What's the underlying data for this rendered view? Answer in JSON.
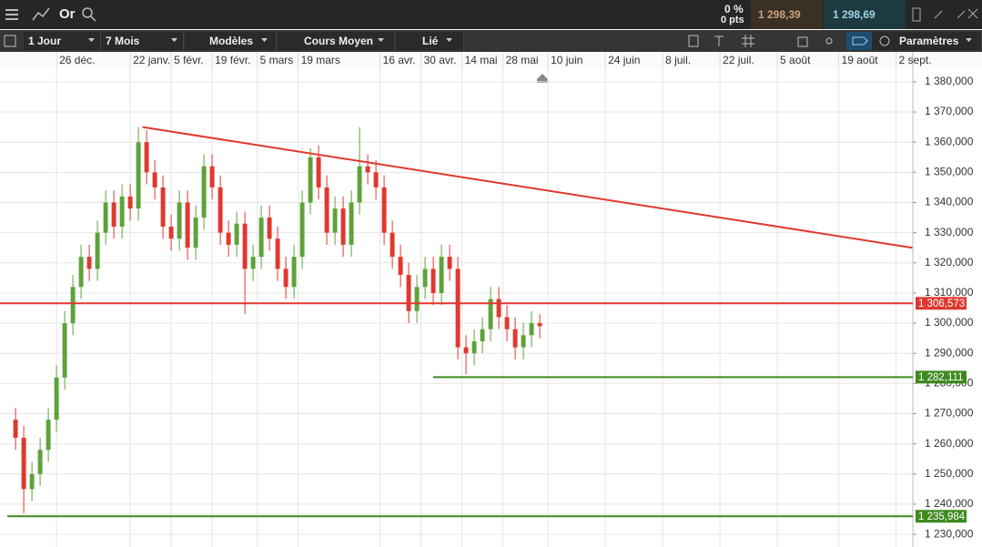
{
  "header": {
    "instrument": "Or",
    "change_pct": "0 %",
    "change_pts": "0 pts",
    "sell": "1 298,39",
    "buy": "1 298,69"
  },
  "toolbar": {
    "interval": "1 Jour",
    "range": "7 Mois",
    "patterns": "Modèles",
    "price_type": "Cours Moyen",
    "link": "Lié",
    "settings": "Paramètres"
  },
  "chart_data": {
    "type": "candlestick",
    "x": [
      0,
      2,
      4,
      6,
      8,
      10,
      12,
      14,
      16,
      18,
      20,
      22,
      24,
      26,
      28,
      30,
      32,
      34,
      36,
      38,
      40,
      42,
      44,
      46,
      48,
      50,
      52,
      54,
      56,
      58,
      60,
      62,
      64,
      66,
      68,
      70,
      72,
      74,
      76,
      78,
      80,
      82,
      84,
      86,
      88,
      90,
      92,
      94,
      96,
      98,
      100,
      102,
      104,
      106,
      108,
      110,
      112,
      114,
      116,
      118,
      120,
      122,
      124,
      126,
      128
    ],
    "open": [
      1268,
      1262,
      1245,
      1250,
      1258,
      1268,
      1282,
      1300,
      1312,
      1322,
      1318,
      1330,
      1340,
      1332,
      1342,
      1338,
      1360,
      1350,
      1345,
      1332,
      1328,
      1340,
      1325,
      1335,
      1352,
      1345,
      1330,
      1326,
      1333,
      1318,
      1322,
      1335,
      1328,
      1318,
      1312,
      1322,
      1340,
      1355,
      1345,
      1330,
      1338,
      1326,
      1340,
      1352,
      1350,
      1345,
      1330,
      1322,
      1316,
      1304,
      1312,
      1318,
      1310,
      1322,
      1318,
      1292,
      1290,
      1294,
      1298,
      1308,
      1302,
      1298,
      1292,
      1296,
      1300
    ],
    "high": [
      1272,
      1266,
      1254,
      1262,
      1272,
      1286,
      1304,
      1316,
      1326,
      1326,
      1334,
      1344,
      1344,
      1346,
      1346,
      1365,
      1364,
      1354,
      1349,
      1336,
      1344,
      1344,
      1339,
      1356,
      1356,
      1349,
      1334,
      1337,
      1337,
      1326,
      1339,
      1339,
      1332,
      1322,
      1326,
      1344,
      1358,
      1359,
      1349,
      1342,
      1342,
      1344,
      1365,
      1356,
      1354,
      1349,
      1334,
      1326,
      1320,
      1316,
      1322,
      1322,
      1326,
      1326,
      1322,
      1296,
      1298,
      1302,
      1312,
      1312,
      1306,
      1302,
      1300,
      1304,
      1303
    ],
    "low": [
      1258,
      1237,
      1241,
      1246,
      1254,
      1264,
      1278,
      1296,
      1308,
      1314,
      1314,
      1326,
      1328,
      1328,
      1334,
      1334,
      1346,
      1341,
      1328,
      1324,
      1324,
      1321,
      1321,
      1331,
      1341,
      1326,
      1322,
      1322,
      1303,
      1314,
      1318,
      1324,
      1314,
      1308,
      1308,
      1318,
      1336,
      1341,
      1326,
      1326,
      1322,
      1322,
      1336,
      1346,
      1341,
      1326,
      1318,
      1312,
      1300,
      1300,
      1308,
      1306,
      1306,
      1314,
      1288,
      1283,
      1286,
      1290,
      1294,
      1298,
      1294,
      1288,
      1288,
      1292,
      1295
    ],
    "close": [
      1262,
      1245,
      1250,
      1258,
      1268,
      1282,
      1300,
      1312,
      1322,
      1318,
      1330,
      1340,
      1332,
      1342,
      1338,
      1360,
      1350,
      1345,
      1332,
      1328,
      1340,
      1325,
      1335,
      1352,
      1345,
      1330,
      1326,
      1333,
      1318,
      1322,
      1335,
      1328,
      1318,
      1312,
      1322,
      1340,
      1355,
      1345,
      1330,
      1338,
      1326,
      1340,
      1352,
      1350,
      1345,
      1330,
      1322,
      1316,
      1304,
      1312,
      1318,
      1310,
      1322,
      1318,
      1292,
      1290,
      1294,
      1298,
      1308,
      1302,
      1298,
      1292,
      1296,
      1300,
      1299
    ],
    "up_color": "#5ea23a",
    "down_color": "#e0382f",
    "xlim": [
      -3.8,
      219.1
    ],
    "xticks": [
      {
        "value": 10,
        "label": "26 déc."
      },
      {
        "value": 28,
        "label": "22 janv."
      },
      {
        "value": 38,
        "label": "5 févr."
      },
      {
        "value": 48,
        "label": "19 févr."
      },
      {
        "value": 59,
        "label": "5 mars"
      },
      {
        "value": 69,
        "label": "19 mars"
      },
      {
        "value": 89,
        "label": "16 avr."
      },
      {
        "value": 99,
        "label": "30 avr."
      },
      {
        "value": 109,
        "label": "14 mai"
      },
      {
        "value": 119,
        "label": "28 mai"
      },
      {
        "value": 130,
        "label": "10 juin"
      },
      {
        "value": 144,
        "label": "24 juin"
      },
      {
        "value": 158,
        "label": "8 juil."
      },
      {
        "value": 172,
        "label": "22 juil."
      },
      {
        "value": 186,
        "label": "5 août"
      },
      {
        "value": 201,
        "label": "19 août"
      },
      {
        "value": 215,
        "label": "2 sept."
      }
    ],
    "ylim": [
      1225.8,
      1384.5
    ],
    "yticks": [
      {
        "value": 1230,
        "label": "1 230,000"
      },
      {
        "value": 1240,
        "label": "1 240,000"
      },
      {
        "value": 1250,
        "label": "1 250,000"
      },
      {
        "value": 1260,
        "label": "1 260,000"
      },
      {
        "value": 1270,
        "label": "1 270,000"
      },
      {
        "value": 1280,
        "label": "1 280,000"
      },
      {
        "value": 1290,
        "label": "1 290,000"
      },
      {
        "value": 1300,
        "label": "1 300,000"
      },
      {
        "value": 1310,
        "label": "1 310,000"
      },
      {
        "value": 1320,
        "label": "1 320,000"
      },
      {
        "value": 1330,
        "label": "1 330,000"
      },
      {
        "value": 1340,
        "label": "1 340,000"
      },
      {
        "value": 1350,
        "label": "1 350,000"
      },
      {
        "value": 1360,
        "label": "1 360,000"
      },
      {
        "value": 1370,
        "label": "1 370,000"
      },
      {
        "value": 1380,
        "label": "1 380,000"
      }
    ],
    "grid": true,
    "trendline": {
      "x": [
        31,
        219
      ],
      "y": [
        1365,
        1325
      ],
      "color": "#e0382f"
    },
    "levels": [
      {
        "value": 1306.573,
        "label": "1 306,573",
        "color": "#e0382f",
        "x_start": -3.8
      },
      {
        "value": 1282.111,
        "label": "1 282,111",
        "color": "#3f8a1e",
        "x_start": 102
      },
      {
        "value": 1235.984,
        "label": "1 235,984",
        "color": "#3f8a1e",
        "x_start": -2
      }
    ]
  }
}
